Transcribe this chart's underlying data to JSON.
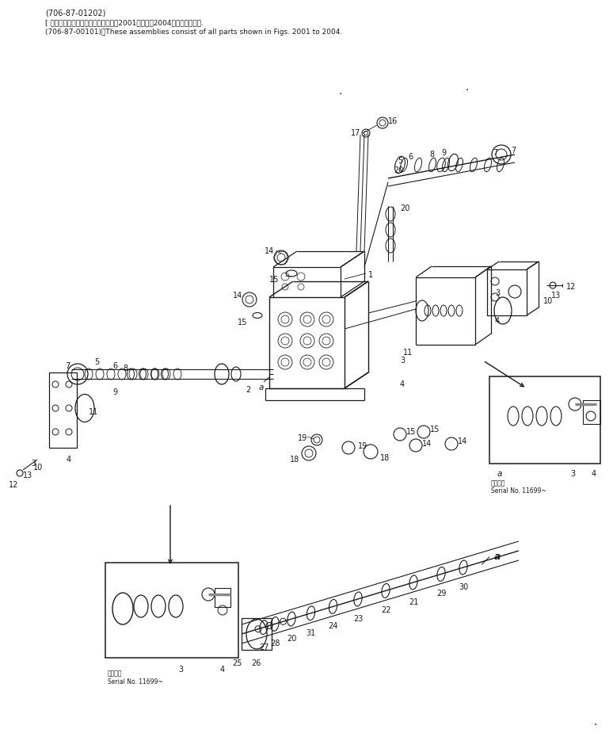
{
  "bg_color": "#f5f5f0",
  "line_color": "#1a1a1a",
  "text_color": "#1a1a1a",
  "fig_width": 7.74,
  "fig_height": 9.3,
  "dpi": 100,
  "header": {
    "line1": "(706-87-01202)",
    "line2_prefix": "[ ",
    "line2_jp": "これらのアセンブリの構成部品は第2001図から第2004図まで含みます.",
    "line3": "(706-87-00101)：These assemblies consist of all parts shown in Figs. 2001 to 2004."
  },
  "serial_note_jp": "適用番号",
  "serial_note_en": "Serial No. 11699~"
}
